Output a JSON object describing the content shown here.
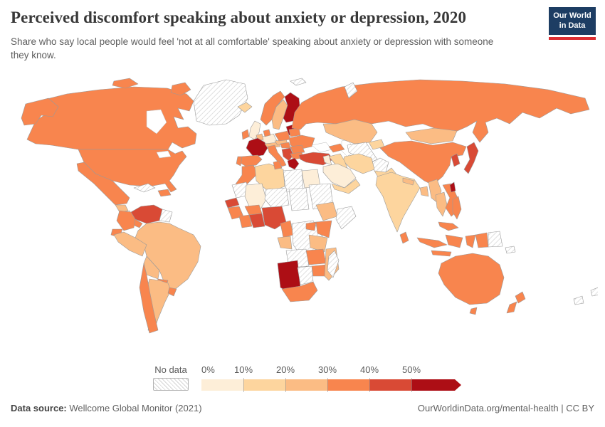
{
  "header": {
    "title": "Perceived discomfort speaking about anxiety or depression, 2020",
    "subtitle": "Share who say local people would feel 'not at all comfortable' speaking about anxiety or depression with someone they know.",
    "logo": {
      "line1": "Our World",
      "line2": "in Data",
      "bg_color": "#1d3d63",
      "bar_color": "#dc2e32"
    }
  },
  "footer": {
    "source_label": "Data source:",
    "source_value": " Wellcome Global Monitor (2021)",
    "right_text": "OurWorldinData.org/mental-health | CC BY"
  },
  "chart_data": {
    "type": "choropleth",
    "title": "Perceived discomfort speaking about anxiety or depression, 2020",
    "unit": "%",
    "year": "2020",
    "legend": {
      "no_data_label": "No data",
      "tick_labels": [
        "0%",
        "10%",
        "20%",
        "30%",
        "40%",
        "50%"
      ],
      "buckets": [
        "0-10",
        "10-20",
        "20-30",
        "30-40",
        "40-50",
        "50+"
      ],
      "colors": {
        "0-10": "#fdeed8",
        "10-20": "#fdd59e",
        "20-30": "#fbbc84",
        "30-40": "#f8854e",
        "40-50": "#d94a35",
        "50+": "#ad0e15",
        "no-data": "hatch"
      },
      "position": "bottom"
    },
    "regions": {
      "greenland": "no-data",
      "canada": "30-40",
      "alaska": "30-40",
      "united-states": "30-40",
      "mexico": "30-40",
      "guatemala": "20-30",
      "nicaragua": "0-10",
      "costa-rica-panama": "30-40",
      "cuba": "no-data",
      "dominican-republic": "30-40",
      "venezuela": "40-50",
      "colombia": "30-40",
      "guyana-suriname": "no-data",
      "ecuador": "30-40",
      "peru": "20-30",
      "brazil": "20-30",
      "bolivia": "20-30",
      "paraguay": "30-40",
      "chile": "30-40",
      "argentina": "20-30",
      "uruguay": "30-40",
      "iceland": "10-20",
      "norway": "30-40",
      "sweden": "20-30",
      "finland": "50+",
      "baltic-states": "50+",
      "united-kingdom": "0-10",
      "ireland": "30-40",
      "denmark": "30-40",
      "germany": "0-10",
      "netherlands-belgium": "20-30",
      "france": "50+",
      "spain": "30-40",
      "portugal": "30-40",
      "italy": "30-40",
      "switzerland-austria": "20-30",
      "czechia-slovakia": "20-30",
      "poland": "30-40",
      "belarus": "30-40",
      "ukraine": "30-40",
      "romania": "30-40",
      "hungary": "30-40",
      "balkans": "40-50",
      "bulgaria": "30-40",
      "greece": "50+",
      "turkey": "40-50",
      "russia": "30-40",
      "svalbard": "no-data",
      "novaya-zemlya": "no-data",
      "kazakhstan": "20-30",
      "caucasus": "30-40",
      "central-asia": "no-data",
      "kyrgyzstan-tajikistan": "10-20",
      "afghanistan": "no-data",
      "pakistan": "10-20",
      "iran": "10-20",
      "iraq": "10-20",
      "levant": "0-10",
      "saudi-arabia": "0-10",
      "yemen-oman": "10-20",
      "egypt": "0-10",
      "libya": "no-data",
      "tunisia": "30-40",
      "algeria": "10-20",
      "morocco": "30-40",
      "mauritania": "no-data",
      "mali": "0-10",
      "niger": "no-data",
      "chad": "no-data",
      "sudan": "no-data",
      "senegal": "40-50",
      "guinea": "30-40",
      "ivory-coast": "30-40",
      "ghana-benin": "40-50",
      "burkina-faso": "30-40",
      "nigeria": "40-50",
      "cameroon": "30-40",
      "gabon-congo": "20-30",
      "drc": "no-data",
      "ethiopia": "20-30",
      "somalia": "no-data",
      "uganda": "30-40",
      "kenya": "30-40",
      "tanzania": "20-30",
      "angola": "no-data",
      "zambia": "30-40",
      "zimbabwe": "30-40",
      "mozambique": "20-30",
      "namibia": "50+",
      "botswana": "no-data",
      "south-africa": "30-40",
      "madagascar": "no-data",
      "mongolia": "20-30",
      "china": "30-40",
      "india": "10-20",
      "nepal": "20-30",
      "bangladesh": "20-30",
      "sri-lanka": "30-40",
      "myanmar": "20-30",
      "thailand": "20-30",
      "vietnam-laos-cambodia": "30-40",
      "malaysia": "30-40",
      "indonesia": "30-40",
      "indonesia-papua": "30-40",
      "papua-new-guinea": "no-data",
      "philippines": "30-40",
      "south-korea": "40-50",
      "japan": "40-50",
      "taiwan": "50+",
      "australia": "30-40",
      "new-zealand": "30-40",
      "solomon-islands": "no-data",
      "new-caledonia": "no-data",
      "fiji": "no-data"
    }
  }
}
